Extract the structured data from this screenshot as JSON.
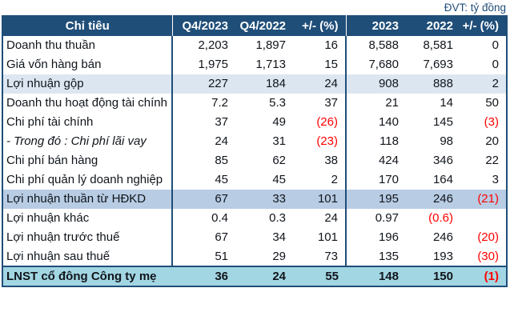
{
  "unit_label": "ĐVT: tỷ đồng",
  "colors": {
    "header_bg": "#1F4E79",
    "header_text": "#FFFFFF",
    "highlight_light_row_bg": "#DCE6F1",
    "highlight_medium_row_bg": "#B8CCE4",
    "total_row_bg": "#A3D6E3",
    "negative_value": "#FF0000",
    "border": "#1F4E79",
    "unit_label_text": "#1F4E79"
  },
  "chart_data": {
    "type": "table",
    "columns": [
      "Chỉ tiêu",
      "Q4/2023",
      "Q4/2022",
      "+/- (%)",
      "2023",
      "2022",
      "+/- (%)"
    ],
    "rows": [
      {
        "label": "Doanh thu thuần",
        "values": [
          "2,203",
          "1,897",
          "16",
          "8,588",
          "8,581",
          "0"
        ],
        "style": "normal"
      },
      {
        "label": "Giá vốn hàng bán",
        "values": [
          "1,975",
          "1,713",
          "15",
          "7,680",
          "7,693",
          "0"
        ],
        "style": "normal"
      },
      {
        "label": "Lợi nhuận gộp",
        "values": [
          "227",
          "184",
          "24",
          "908",
          "888",
          "2"
        ],
        "style": "highlight-light"
      },
      {
        "label": "Doanh thu hoạt động tài chính",
        "values": [
          "7.2",
          "5.3",
          "37",
          "21",
          "14",
          "50"
        ],
        "style": "normal"
      },
      {
        "label": "Chi phí tài chính",
        "values": [
          "37",
          "49",
          "(26)",
          "140",
          "145",
          "(3)"
        ],
        "style": "normal"
      },
      {
        "label": "- Trong đó : Chi phí lãi vay",
        "values": [
          "24",
          "31",
          "(23)",
          "118",
          "98",
          "20"
        ],
        "style": "italic"
      },
      {
        "label": "Chi phí bán hàng",
        "values": [
          "85",
          "62",
          "38",
          "424",
          "346",
          "22"
        ],
        "style": "normal"
      },
      {
        "label": "Chi phí quản lý doanh nghiệp",
        "values": [
          "45",
          "45",
          "2",
          "170",
          "164",
          "3"
        ],
        "style": "normal"
      },
      {
        "label": "Lợi nhuận thuần từ HĐKD",
        "values": [
          "67",
          "33",
          "101",
          "195",
          "246",
          "(21)"
        ],
        "style": "highlight-medium"
      },
      {
        "label": "Lợi nhuận khác",
        "values": [
          "0.4",
          "0.3",
          "24",
          "0.97",
          "(0.6)",
          ""
        ],
        "style": "normal"
      },
      {
        "label": "Lợi nhuận trước thuế",
        "values": [
          "67",
          "34",
          "101",
          "196",
          "246",
          "(20)"
        ],
        "style": "normal"
      },
      {
        "label": "Lợi nhuận sau thuế",
        "values": [
          "51",
          "29",
          "73",
          "135",
          "193",
          "(30)"
        ],
        "style": "normal"
      },
      {
        "label": "LNST cổ đông Công ty mẹ",
        "values": [
          "36",
          "24",
          "55",
          "148",
          "150",
          "(1)"
        ],
        "style": "total"
      }
    ]
  }
}
